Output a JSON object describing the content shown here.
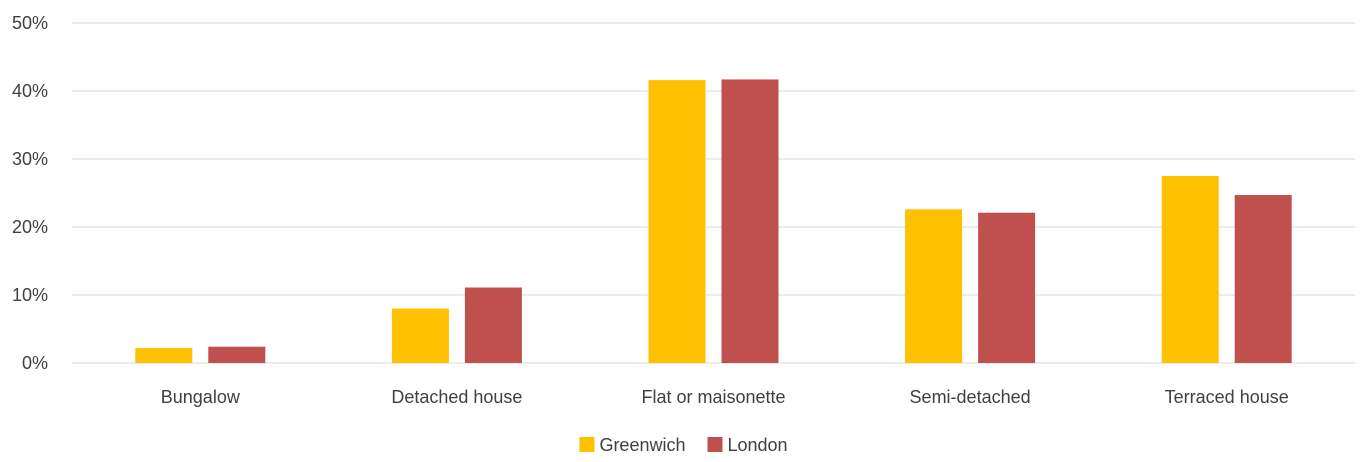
{
  "chart_data": {
    "type": "bar",
    "categories": [
      "Bungalow",
      "Detached house",
      "Flat or maisonette",
      "Semi-detached",
      "Terraced house"
    ],
    "series": [
      {
        "name": "Greenwich",
        "color": "#FFC000",
        "values": [
          2.2,
          8.0,
          41.6,
          22.6,
          27.5
        ]
      },
      {
        "name": "London",
        "color": "#C0504D",
        "values": [
          2.4,
          11.1,
          41.7,
          22.1,
          24.7
        ]
      }
    ],
    "y_ticks": [
      "0%",
      "10%",
      "20%",
      "30%",
      "40%",
      "50%"
    ],
    "ylim": [
      0,
      50
    ],
    "grid": true,
    "legend_position": "bottom-center"
  }
}
